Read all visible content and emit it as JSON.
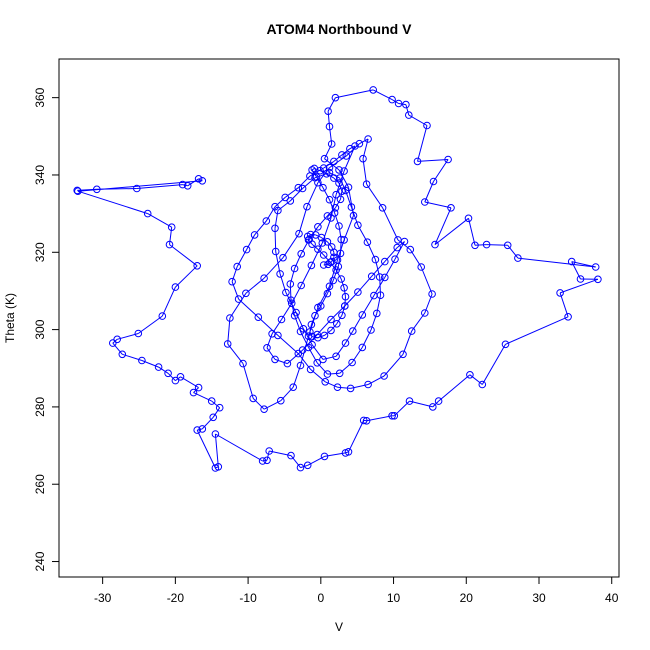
{
  "chart_data": {
    "type": "scatter",
    "title": "ATOM4 Northbound V",
    "xlabel": "V",
    "ylabel": "Theta (K)",
    "xlim": [
      -36,
      41
    ],
    "ylim": [
      236,
      370
    ],
    "xticks": [
      -30,
      -20,
      -10,
      0,
      10,
      20,
      30,
      40
    ],
    "yticks": [
      240,
      260,
      280,
      300,
      320,
      340,
      360
    ],
    "grid": false,
    "legend": "none",
    "marker": "open-circle",
    "connected": true,
    "color": "#0000ff",
    "series": [
      {
        "points": [
          [
            -33.5,
            336
          ],
          [
            -30.8,
            336.3
          ],
          [
            -25.3,
            336.5
          ],
          [
            -19,
            337.5
          ],
          [
            -18.3,
            337.2
          ],
          [
            -16.8,
            339
          ],
          [
            -16.3,
            338.5
          ],
          [
            -33.4,
            335.8
          ],
          [
            -23.8,
            330
          ],
          [
            -20.5,
            326.5
          ],
          [
            -20.8,
            322
          ],
          [
            -17,
            316.5
          ],
          [
            -20,
            311
          ],
          [
            -21.8,
            303.5
          ],
          [
            -25.1,
            299
          ],
          [
            -28,
            297.5
          ],
          [
            -28.6,
            296.5
          ],
          [
            -27.3,
            293.6
          ],
          [
            -24.6,
            292
          ],
          [
            -22.3,
            290.3
          ],
          [
            -21,
            288.7
          ],
          [
            -20,
            286.8
          ],
          [
            -19.3,
            287.8
          ],
          [
            -16.8,
            285
          ],
          [
            -17.5,
            283.7
          ],
          [
            -15,
            281.5
          ],
          [
            -13.9,
            279.8
          ],
          [
            -14.8,
            277.3
          ],
          [
            -16.3,
            274.3
          ],
          [
            -17,
            274
          ],
          [
            -14.5,
            264.2
          ],
          [
            -14.1,
            264.5
          ],
          [
            -14.5,
            273
          ],
          [
            -8,
            266
          ],
          [
            -7.4,
            266.2
          ],
          [
            -7.1,
            268.6
          ],
          [
            -4.1,
            267.4
          ],
          [
            -2.8,
            264.3
          ],
          [
            -1.8,
            264.9
          ],
          [
            0.5,
            267.2
          ],
          [
            3.4,
            268.1
          ],
          [
            3.8,
            268.4
          ],
          [
            5.9,
            276.5
          ],
          [
            6.3,
            276.4
          ],
          [
            9.8,
            277.7
          ],
          [
            10.1,
            277.7
          ],
          [
            12.2,
            281.5
          ],
          [
            15.4,
            280
          ],
          [
            16.2,
            281.5
          ],
          [
            20.5,
            288.3
          ],
          [
            22.2,
            285.8
          ],
          [
            25.4,
            296.2
          ],
          [
            34,
            303.3
          ],
          [
            32.9,
            309.5
          ],
          [
            38.1,
            313
          ],
          [
            35.7,
            313.1
          ],
          [
            34.5,
            317.6
          ],
          [
            37.8,
            316.2
          ],
          [
            27.1,
            318.5
          ],
          [
            25.7,
            321.8
          ],
          [
            22.8,
            322
          ],
          [
            21.2,
            321.8
          ],
          [
            20.3,
            328.8
          ],
          [
            15.7,
            322
          ],
          [
            17.9,
            331.5
          ],
          [
            14.3,
            333
          ],
          [
            15.5,
            338.3
          ],
          [
            17.5,
            344
          ],
          [
            13.3,
            343.5
          ],
          [
            14.6,
            352.8
          ],
          [
            12.1,
            355.5
          ],
          [
            11.7,
            358.2
          ],
          [
            10.7,
            358.5
          ],
          [
            9.8,
            359.5
          ],
          [
            7.2,
            362
          ],
          [
            2,
            360
          ],
          [
            1,
            356.5
          ],
          [
            1.2,
            352.5
          ],
          [
            1.5,
            348
          ],
          [
            0.5,
            344.2
          ],
          [
            2.5,
            341.3
          ],
          [
            3.8,
            336.8
          ],
          [
            4.5,
            329.5
          ],
          [
            3.2,
            323.2
          ],
          [
            2.3,
            318
          ],
          [
            1.2,
            311.2
          ],
          [
            -0.4,
            305.7
          ],
          [
            -1.7,
            298.3
          ],
          [
            -2.8,
            290.7
          ],
          [
            -3.8,
            285.1
          ],
          [
            -5.5,
            281.6
          ],
          [
            -7.8,
            279.4
          ],
          [
            -9.3,
            282.2
          ],
          [
            -10.7,
            291.2
          ],
          [
            -12.8,
            296.3
          ],
          [
            -12.5,
            303
          ],
          [
            -10.3,
            309.4
          ],
          [
            -7.8,
            313.3
          ],
          [
            -5.2,
            318.6
          ],
          [
            -3,
            324.8
          ],
          [
            -1.9,
            331.8
          ],
          [
            -0.4,
            338
          ],
          [
            1.2,
            341.9
          ],
          [
            3.5,
            344.9
          ],
          [
            5.3,
            348.1
          ],
          [
            6.5,
            349.3
          ],
          [
            5.8,
            344.2
          ],
          [
            6.3,
            337.6
          ],
          [
            8.5,
            331.5
          ],
          [
            10.6,
            323.2
          ],
          [
            12.3,
            320.7
          ],
          [
            13.8,
            316.2
          ],
          [
            15.3,
            309.2
          ],
          [
            14.3,
            304.3
          ],
          [
            12.5,
            299.6
          ],
          [
            11.3,
            293.6
          ],
          [
            8.7,
            288
          ],
          [
            6.5,
            285.8
          ],
          [
            4.1,
            284.8
          ],
          [
            2.3,
            285.1
          ],
          [
            0.6,
            286.5
          ],
          [
            -1.4,
            289.7
          ],
          [
            -3.1,
            293.8
          ],
          [
            -5.9,
            298.5
          ],
          [
            -8.6,
            303.2
          ],
          [
            -11.3,
            307.9
          ],
          [
            -12.2,
            312.4
          ],
          [
            -11.5,
            316.3
          ],
          [
            -10.2,
            320.7
          ],
          [
            -9.1,
            324.5
          ],
          [
            -7.5,
            328.1
          ],
          [
            -6.3,
            331.8
          ],
          [
            -4.9,
            334.2
          ],
          [
            -3.1,
            336.7
          ],
          [
            -1.5,
            339.7
          ],
          [
            0.4,
            341.8
          ],
          [
            1.8,
            343.5
          ],
          [
            2.9,
            345.2
          ],
          [
            4,
            346.8
          ],
          [
            4.7,
            347.5
          ],
          [
            3.2,
            341
          ],
          [
            2.1,
            334.9
          ],
          [
            1.4,
            328.9
          ],
          [
            0.2,
            322.4
          ],
          [
            -1.3,
            316.6
          ],
          [
            -2.7,
            311.4
          ],
          [
            -4,
            306.8
          ],
          [
            -5.4,
            302.6
          ],
          [
            -6.7,
            298.9
          ],
          [
            -7.4,
            295.3
          ],
          [
            -6.3,
            292.3
          ],
          [
            -4.6,
            291.2
          ],
          [
            -2.5,
            294.7
          ],
          [
            -0.5,
            298.7
          ],
          [
            1.4,
            302.6
          ],
          [
            3.3,
            306.1
          ],
          [
            5.1,
            309.7
          ],
          [
            7,
            313.8
          ],
          [
            8.8,
            317.6
          ],
          [
            10.5,
            321.2
          ],
          [
            11.5,
            322.8
          ],
          [
            10.2,
            318.2
          ],
          [
            8.8,
            313.5
          ],
          [
            7.3,
            308.8
          ],
          [
            5.7,
            303.8
          ],
          [
            4.4,
            299.6
          ],
          [
            3.4,
            296.5
          ],
          [
            2.1,
            293.1
          ],
          [
            0.3,
            292.3
          ],
          [
            -1.2,
            296.1
          ],
          [
            -2.4,
            300.2
          ],
          [
            -3.4,
            304.4
          ],
          [
            -4.8,
            309.6
          ],
          [
            -5.6,
            314.4
          ],
          [
            -6.2,
            320.2
          ],
          [
            -6.3,
            326.2
          ],
          [
            -5.9,
            330.8
          ],
          [
            -4.2,
            333.3
          ],
          [
            -2.5,
            336.5
          ],
          [
            -0.8,
            339.3
          ],
          [
            1.2,
            340.6
          ],
          [
            2.6,
            339.2
          ],
          [
            3.4,
            336
          ],
          [
            4.2,
            331.7
          ],
          [
            5.1,
            327
          ],
          [
            6.4,
            322.6
          ],
          [
            7.5,
            318.1
          ],
          [
            8.1,
            313.6
          ],
          [
            8.2,
            308.9
          ],
          [
            7.7,
            304.2
          ],
          [
            6.9,
            299.9
          ],
          [
            5.7,
            295.4
          ],
          [
            4.3,
            291.5
          ],
          [
            2.6,
            288.7
          ],
          [
            0.9,
            288.5
          ],
          [
            -0.5,
            291.4
          ],
          [
            -1.7,
            295.4
          ],
          [
            -2.8,
            299.5
          ],
          [
            -3.6,
            303.6
          ],
          [
            -4.1,
            307.6
          ],
          [
            -4.2,
            311.8
          ],
          [
            -3.6,
            315.8
          ],
          [
            -2.7,
            319.6
          ],
          [
            -1.6,
            323.3
          ],
          [
            -0.4,
            326.6
          ],
          [
            0.9,
            329.4
          ],
          [
            2,
            331.5
          ],
          [
            2.7,
            333.7
          ],
          [
            2.9,
            335.8
          ],
          [
            2.5,
            337.9
          ],
          [
            1.8,
            339.2
          ],
          [
            0.8,
            340.3
          ],
          [
            -0.1,
            341.1
          ],
          [
            -0.9,
            341.7
          ],
          [
            -1.2,
            341.3
          ],
          [
            -0.6,
            339.5
          ],
          [
            0.3,
            336.7
          ],
          [
            1.2,
            333.6
          ],
          [
            1.9,
            330.2
          ],
          [
            2.5,
            326.8
          ],
          [
            2.8,
            323.3
          ],
          [
            2.7,
            319.7
          ],
          [
            2.4,
            316.3
          ],
          [
            1.7,
            312.7
          ],
          [
            0.9,
            309.3
          ],
          [
            0,
            306.1
          ],
          [
            -0.8,
            303.6
          ],
          [
            -1.3,
            301.3
          ],
          [
            -1.5,
            299.4
          ],
          [
            -1.2,
            298.2
          ],
          [
            -0.4,
            297.9
          ],
          [
            0.5,
            298.5
          ],
          [
            1.4,
            299.8
          ],
          [
            2.2,
            301.5
          ],
          [
            2.9,
            303.7
          ],
          [
            3.3,
            306.1
          ],
          [
            3.4,
            308.5
          ],
          [
            3.2,
            310.8
          ],
          [
            2.8,
            313.1
          ],
          [
            2.1,
            315.4
          ],
          [
            1.3,
            317.4
          ],
          [
            0.4,
            319.3
          ],
          [
            -0.4,
            320.8
          ],
          [
            -1.2,
            322.1
          ],
          [
            -1.7,
            323.2
          ],
          [
            -1.8,
            324.1
          ],
          [
            -1.4,
            324.6
          ],
          [
            -0.7,
            324.5
          ],
          [
            0.1,
            323.8
          ],
          [
            0.9,
            322.7
          ],
          [
            1.5,
            321.4
          ],
          [
            1.8,
            320
          ],
          [
            1.8,
            318.7
          ],
          [
            1.5,
            317.6
          ],
          [
            1,
            316.9
          ],
          [
            0.4,
            316.7
          ]
        ]
      }
    ]
  }
}
